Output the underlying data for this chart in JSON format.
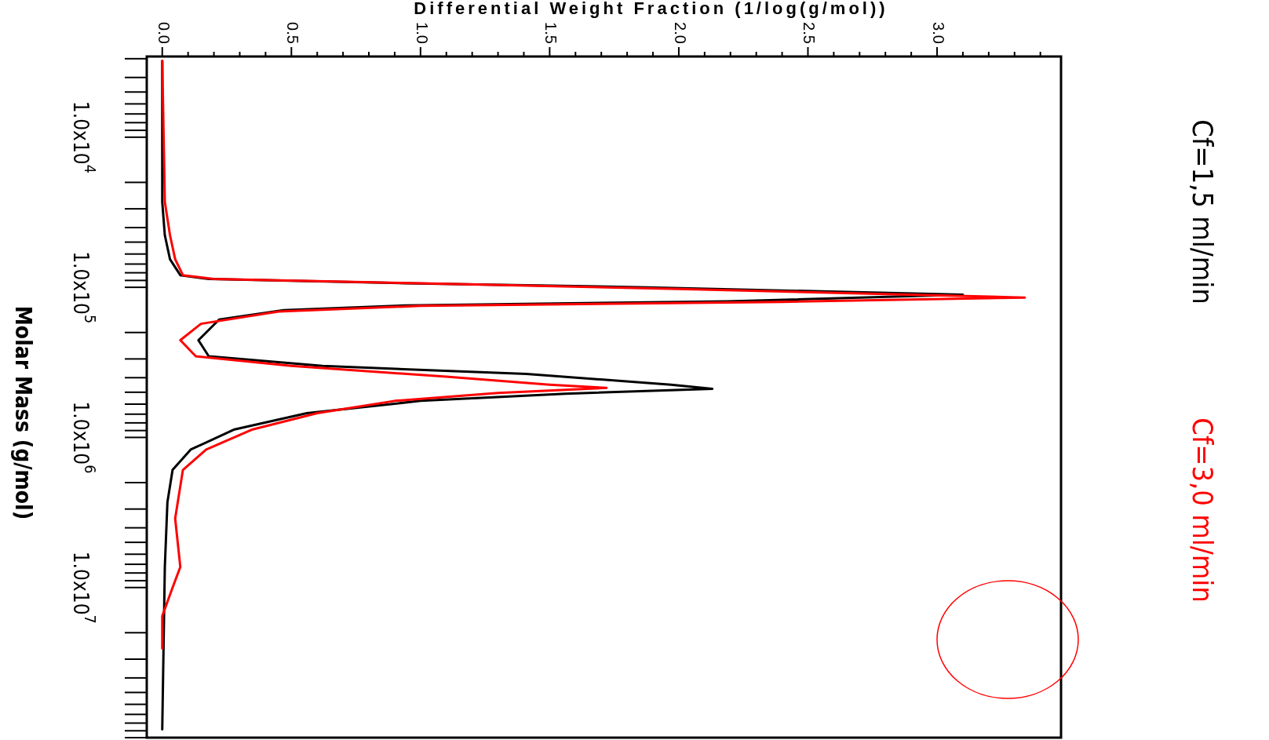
{
  "chart_data": {
    "type": "line",
    "xlabel": "Differential Weight Fraction (1/log(g/mol))",
    "ylabel": "Molar Mass (g/mol)",
    "log": "y",
    "legend": "right",
    "ylim": [
      100000000,
      2900
    ],
    "yticks": [
      {
        "value": 10000,
        "label": "1.0x10$^{4}$"
      },
      {
        "value": 100000,
        "label": "1.0x10$^{5}$"
      },
      {
        "value": 1000000,
        "label": "1.0x10$^{6}$"
      },
      {
        "value": 10000000,
        "label": "1.0x10$^{7}$"
      }
    ],
    "xlim": [
      -0.06,
      3.48
    ],
    "xticks": [
      {
        "value": 0,
        "label": "0.0"
      },
      {
        "value": 0.1,
        "label": null
      },
      {
        "value": 0.2,
        "label": null
      },
      {
        "value": 0.3,
        "label": null
      },
      {
        "value": 0.4,
        "label": null
      },
      {
        "value": 0.5,
        "label": "0.5"
      },
      {
        "value": 0.6,
        "label": null
      },
      {
        "value": 0.7,
        "label": null
      },
      {
        "value": 0.8,
        "label": null
      },
      {
        "value": 0.9,
        "label": null
      },
      {
        "value": 1,
        "label": "1.0"
      },
      {
        "value": 1.1,
        "label": null
      },
      {
        "value": 1.2,
        "label": null
      },
      {
        "value": 1.3,
        "label": null
      },
      {
        "value": 1.4,
        "label": null
      },
      {
        "value": 1.5,
        "label": "1.5"
      },
      {
        "value": 1.6,
        "label": null
      },
      {
        "value": 1.7,
        "label": null
      },
      {
        "value": 1.8,
        "label": null
      },
      {
        "value": 1.9,
        "label": null
      },
      {
        "value": 2,
        "label": "2.0"
      },
      {
        "value": 2.1,
        "label": null
      },
      {
        "value": 2.2,
        "label": null
      },
      {
        "value": 2.3,
        "label": null
      },
      {
        "value": 2.4,
        "label": null
      },
      {
        "value": 2.5,
        "label": "2.5"
      },
      {
        "value": 2.6,
        "label": null
      },
      {
        "value": 2.7,
        "label": null
      },
      {
        "value": 2.8,
        "label": null
      },
      {
        "value": 2.9,
        "label": null
      },
      {
        "value": 3,
        "label": "3.0"
      },
      {
        "value": 3.1,
        "label": null
      },
      {
        "value": 3.2,
        "label": null
      },
      {
        "value": 3.3,
        "label": null
      },
      {
        "value": 3.4,
        "label": null
      }
    ],
    "series": [
      {
        "name": "Cf=1,5 ml/min",
        "color": "#000000",
        "values": [
          3100,
          27000,
          45000,
          65000,
          83000,
          88000,
          94000,
          100000,
          112000,
          124000,
          132000,
          142000,
          164000,
          225000,
          288000,
          334000,
          378000,
          445000,
          474000,
          511000,
          571000,
          689000,
          884000,
          1205000,
          1645000,
          2700000,
          7300000,
          88000000
        ],
        "x": [
          0,
          0,
          0.01,
          0.03,
          0.07,
          0.18,
          0.94,
          1.88,
          3.1,
          2.19,
          0.94,
          0.47,
          0.22,
          0.14,
          0.18,
          0.62,
          1.41,
          1.97,
          2.13,
          1.56,
          1,
          0.56,
          0.28,
          0.11,
          0.04,
          0.02,
          0.01,
          0
        ]
      },
      {
        "name": "Cf=3,0 ml/min",
        "color": "#ff0000",
        "values": [
          3100,
          27000,
          45000,
          65000,
          83000,
          88000,
          94000,
          102600,
          117000,
          125000,
          133000,
          145000,
          175000,
          225000,
          288000,
          334000,
          394000,
          445000,
          468000,
          505000,
          571000,
          689000,
          884000,
          1205000,
          1645000,
          3470000,
          7300000,
          10000000,
          15500000,
          25400000
        ],
        "x": [
          0,
          0.01,
          0.03,
          0.05,
          0.08,
          0.2,
          1,
          2,
          3.34,
          2.4,
          1,
          0.45,
          0.15,
          0.07,
          0.13,
          0.5,
          1.1,
          1.5,
          1.72,
          1.3,
          0.9,
          0.6,
          0.35,
          0.17,
          0.08,
          0.05,
          0.07,
          0.04,
          0,
          0
        ]
      }
    ]
  }
}
